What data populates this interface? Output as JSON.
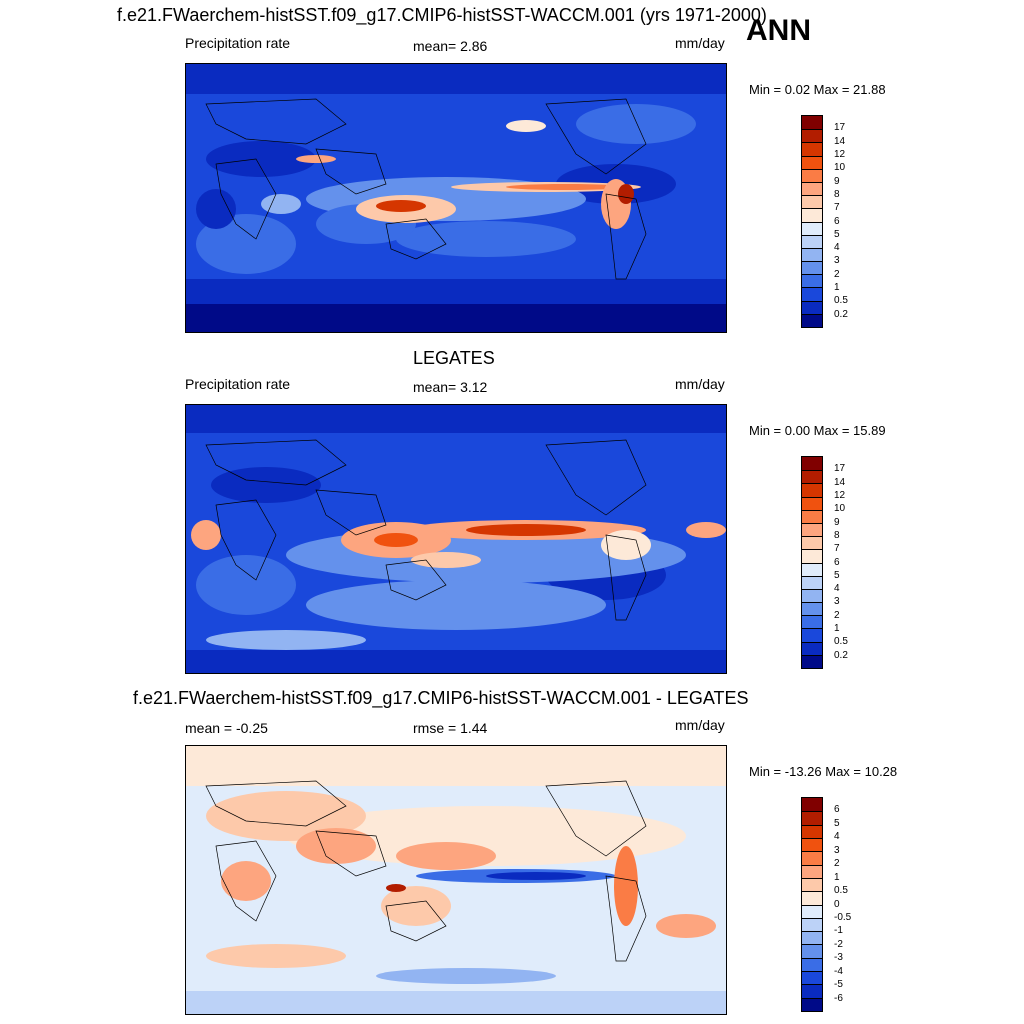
{
  "header": {
    "main_title": "f.e21.FWaerchem-histSST.f09_g17.CMIP6-histSST-WACCM.001 (yrs 1971-2000)",
    "season": "ANN"
  },
  "panels": [
    {
      "title": "",
      "left_label": "Precipitation rate",
      "center_label": "mean=   2.86",
      "right_label": "mm/day",
      "minmax": "Min =   0.02 Max =  21.88",
      "kind": "field"
    },
    {
      "title": "LEGATES",
      "left_label": "Precipitation rate",
      "center_label": "mean=   3.12",
      "right_label": "mm/day",
      "minmax": "Min =   0.00 Max =  15.89",
      "kind": "field"
    },
    {
      "title": "f.e21.FWaerchem-histSST.f09_g17.CMIP6-histSST-WACCM.001 - LEGATES",
      "left_label": "mean =  -0.25",
      "center_label": "rmse =   1.44",
      "right_label": "mm/day",
      "minmax": "Min = -13.26 Max =  10.28",
      "kind": "diff"
    }
  ],
  "colorbars": {
    "field": {
      "labels": [
        "17",
        "14",
        "12",
        "10",
        "9",
        "8",
        "7",
        "6",
        "5",
        "4",
        "3",
        "2",
        "1",
        "0.5",
        "0.2"
      ],
      "colors": [
        "#800000",
        "#b21d00",
        "#d53600",
        "#f0520f",
        "#fa7c45",
        "#fda57f",
        "#fdc9aa",
        "#fde9d8",
        "#e0ecfb",
        "#bcd2f7",
        "#92b4f2",
        "#6491ec",
        "#3a6de6",
        "#1a48db",
        "#0a2bc0",
        "#000a88"
      ]
    },
    "diff": {
      "labels": [
        "6",
        "5",
        "4",
        "3",
        "2",
        "1",
        "0.5",
        "0",
        "-0.5",
        "-1",
        "-2",
        "-3",
        "-4",
        "-5",
        "-6"
      ],
      "colors": [
        "#800000",
        "#b21d00",
        "#d53600",
        "#f0520f",
        "#fa7c45",
        "#fda57f",
        "#fdc9aa",
        "#fde9d8",
        "#e0ecfb",
        "#bcd2f7",
        "#92b4f2",
        "#6491ec",
        "#3a6de6",
        "#1a48db",
        "#0a2bc0",
        "#000a88"
      ]
    }
  }
}
